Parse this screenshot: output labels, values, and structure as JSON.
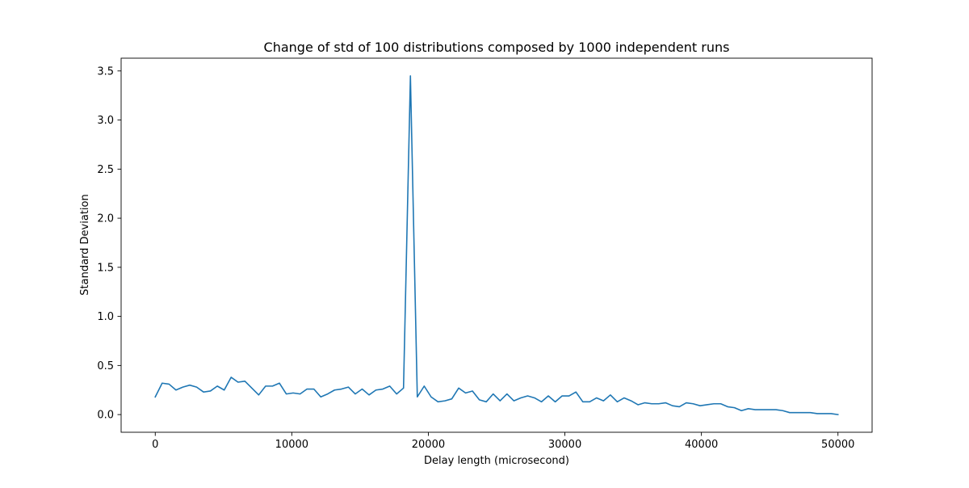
{
  "chart_data": {
    "type": "line",
    "title": "Change of std of 100 distributions composed by 1000 independent runs",
    "xlabel": "Delay length (microsecond)",
    "ylabel": "Standard Deviation",
    "xlim": [
      -2500,
      52500
    ],
    "ylim": [
      -0.18,
      3.63
    ],
    "xticks": [
      0,
      10000,
      20000,
      30000,
      40000,
      50000
    ],
    "xtick_labels": [
      "0",
      "10000",
      "20000",
      "30000",
      "40000",
      "50000"
    ],
    "yticks": [
      0.0,
      0.5,
      1.0,
      1.5,
      2.0,
      2.5,
      3.0,
      3.5
    ],
    "ytick_labels": [
      "0.0",
      "0.5",
      "1.0",
      "1.5",
      "2.0",
      "2.5",
      "3.0",
      "3.5"
    ],
    "grid": false,
    "series": [
      {
        "color": "#1f77b4",
        "x": [
          0,
          505,
          1010,
          1515,
          2020,
          2525,
          3030,
          3535,
          4040,
          4545,
          5051,
          5556,
          6061,
          6566,
          7071,
          7576,
          8081,
          8586,
          9091,
          9596,
          10101,
          10606,
          11111,
          11616,
          12121,
          12626,
          13131,
          13636,
          14141,
          14646,
          15152,
          15657,
          16162,
          16667,
          17172,
          17677,
          18182,
          18687,
          19192,
          19697,
          20202,
          20707,
          21212,
          21717,
          22222,
          22727,
          23232,
          23737,
          24242,
          24747,
          25253,
          25758,
          26263,
          26768,
          27273,
          27778,
          28283,
          28788,
          29293,
          29798,
          30303,
          30808,
          31313,
          31818,
          32323,
          32828,
          33333,
          33838,
          34343,
          34848,
          35354,
          35859,
          36364,
          36869,
          37374,
          37879,
          38384,
          38889,
          39394,
          39899,
          40404,
          40909,
          41414,
          41919,
          42424,
          42929,
          43434,
          43939,
          44444,
          44949,
          45455,
          45960,
          46465,
          46970,
          47475,
          47980,
          48485,
          48990,
          49495,
          50000
        ],
        "y": [
          0.18,
          0.32,
          0.31,
          0.25,
          0.28,
          0.3,
          0.28,
          0.23,
          0.24,
          0.29,
          0.25,
          0.38,
          0.33,
          0.34,
          0.27,
          0.2,
          0.29,
          0.29,
          0.32,
          0.21,
          0.22,
          0.21,
          0.26,
          0.26,
          0.18,
          0.21,
          0.25,
          0.26,
          0.28,
          0.21,
          0.26,
          0.2,
          0.25,
          0.26,
          0.29,
          0.21,
          0.27,
          3.45,
          0.18,
          0.29,
          0.18,
          0.13,
          0.14,
          0.16,
          0.27,
          0.22,
          0.24,
          0.15,
          0.13,
          0.21,
          0.14,
          0.21,
          0.14,
          0.17,
          0.19,
          0.17,
          0.13,
          0.19,
          0.13,
          0.19,
          0.19,
          0.23,
          0.13,
          0.13,
          0.17,
          0.14,
          0.2,
          0.13,
          0.17,
          0.14,
          0.1,
          0.12,
          0.11,
          0.11,
          0.12,
          0.09,
          0.08,
          0.12,
          0.11,
          0.09,
          0.1,
          0.11,
          0.11,
          0.08,
          0.07,
          0.04,
          0.06,
          0.05,
          0.05,
          0.05,
          0.05,
          0.04,
          0.02,
          0.02,
          0.02,
          0.02,
          0.01,
          0.01,
          0.01,
          0.0
        ]
      }
    ]
  }
}
